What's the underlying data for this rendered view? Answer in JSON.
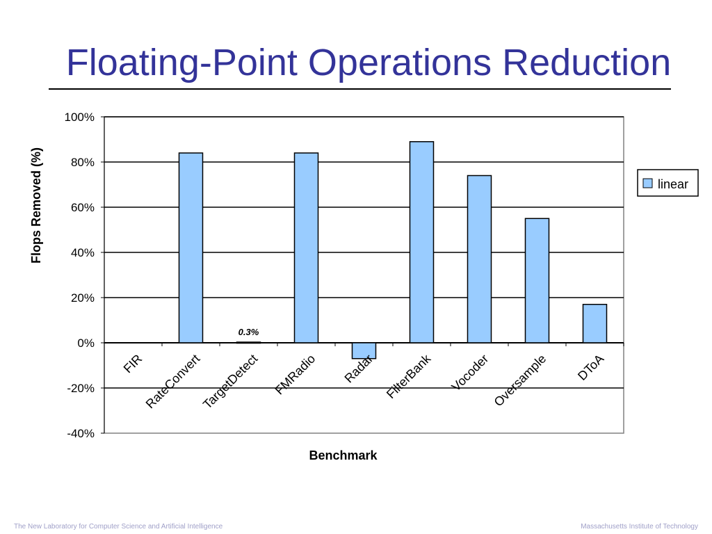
{
  "slide": {
    "title": "Floating-Point Operations Reduction",
    "footer_left": "The New Laboratory for Computer Science and Artificial Intelligence",
    "footer_right": "Massachusetts Institute of Technology"
  },
  "colors": {
    "title": "#333399",
    "bar_fill": "#99CCFF",
    "bar_stroke": "#000000",
    "footer": "#A0A0C8"
  },
  "chart_data": {
    "type": "bar",
    "title": "",
    "xlabel": "Benchmark",
    "ylabel": "Flops Removed (%)",
    "ylim": [
      -40,
      100
    ],
    "yticks": [
      -40,
      -20,
      0,
      20,
      40,
      60,
      80,
      100
    ],
    "ytick_labels": [
      "-40%",
      "-20%",
      "0%",
      "20%",
      "40%",
      "60%",
      "80%",
      "100%"
    ],
    "grid": true,
    "legend_position": "right",
    "categories": [
      "FIR",
      "RateConvert",
      "TargetDetect",
      "FMRadio",
      "Radar",
      "FilterBank",
      "Vocoder",
      "Oversample",
      "DToA"
    ],
    "series": [
      {
        "name": "linear",
        "values": [
          0,
          84,
          0.3,
          84,
          -7,
          89,
          74,
          55,
          17
        ]
      }
    ],
    "annotations": [
      {
        "category": "TargetDetect",
        "text": "0.3%"
      }
    ]
  }
}
